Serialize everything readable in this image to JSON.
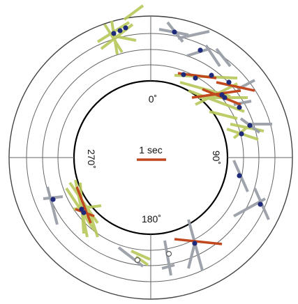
{
  "labels": {
    "azimuth_0": "0˚",
    "azimuth_90": "90˚",
    "azimuth_180": "180˚",
    "azimuth_270": "270˚",
    "scale": "1 sec"
  },
  "colors": {
    "background": "#ffffff",
    "rings": "#444444",
    "inner_ring": "#000000",
    "yellow_bars": "#b9c75a",
    "gray_bars": "#9aa0a8",
    "red_bars": "#c0471e",
    "dots": "#1f2a7a",
    "scale_bar": "#c0471e"
  },
  "legend": {
    "scale_bar_name": "scale-bar",
    "ring_count": 5
  },
  "icons": {
    "dot": "dot-marker",
    "open_marker": "circle-marker"
  }
}
